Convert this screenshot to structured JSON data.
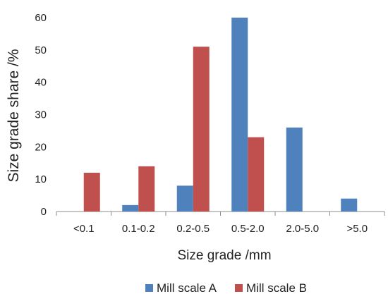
{
  "chart_data": {
    "type": "bar",
    "title": "",
    "xlabel": "Size grade /mm",
    "ylabel": "Size grade share /%",
    "categories": [
      "<0.1",
      "0.1-0.2",
      "0.2-0.5",
      "0.5-2.0",
      "2.0-5.0",
      ">5.0"
    ],
    "series": [
      {
        "name": "Mill scale A",
        "color": "#4F81BD",
        "values": [
          0,
          2,
          8,
          60,
          26,
          4
        ]
      },
      {
        "name": "Mill scale B",
        "color": "#C0504D",
        "values": [
          12,
          14,
          51,
          23,
          0,
          0
        ]
      }
    ],
    "ylim": [
      0,
      60
    ],
    "yticks": [
      0,
      10,
      20,
      30,
      40,
      50,
      60
    ],
    "grid": false,
    "legend_position": "bottom"
  }
}
